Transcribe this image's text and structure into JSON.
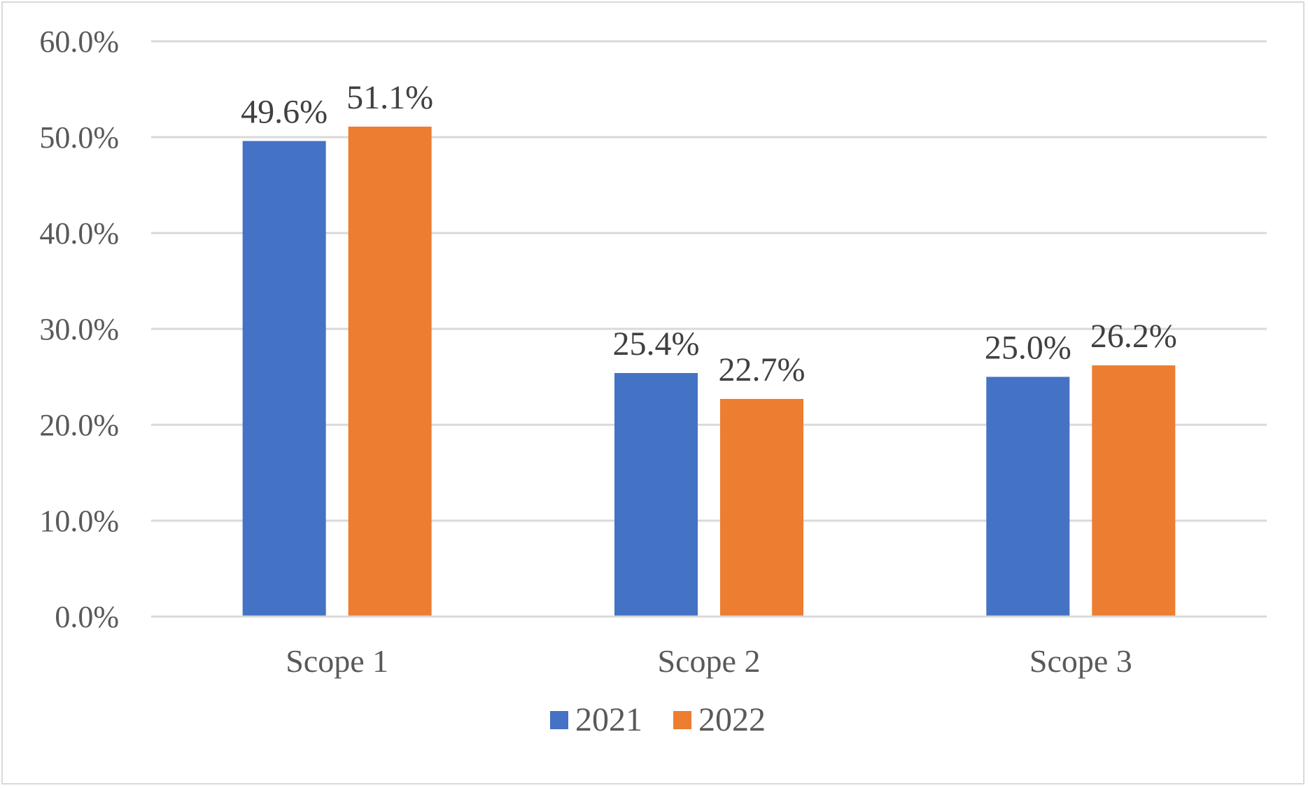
{
  "chart_data": {
    "type": "bar",
    "categories": [
      "Scope 1",
      "Scope 2",
      "Scope 3"
    ],
    "series": [
      {
        "name": "2021",
        "color": "#4472C4",
        "values": [
          49.6,
          25.4,
          25.0
        ],
        "labels": [
          "49.6%",
          "25.4%",
          "25.0%"
        ]
      },
      {
        "name": "2022",
        "color": "#ED7D31",
        "values": [
          51.1,
          22.7,
          26.2
        ],
        "labels": [
          "51.1%",
          "22.7%",
          "26.2%"
        ]
      }
    ],
    "yticks": [
      0,
      10,
      20,
      30,
      40,
      50,
      60
    ],
    "ytick_labels": [
      "0.0%",
      "10.0%",
      "20.0%",
      "30.0%",
      "40.0%",
      "50.0%",
      "60.0%"
    ],
    "ylim": [
      0,
      60
    ],
    "grid": true,
    "gridline_color": "#d9d9d9",
    "legend_position": "bottom"
  }
}
